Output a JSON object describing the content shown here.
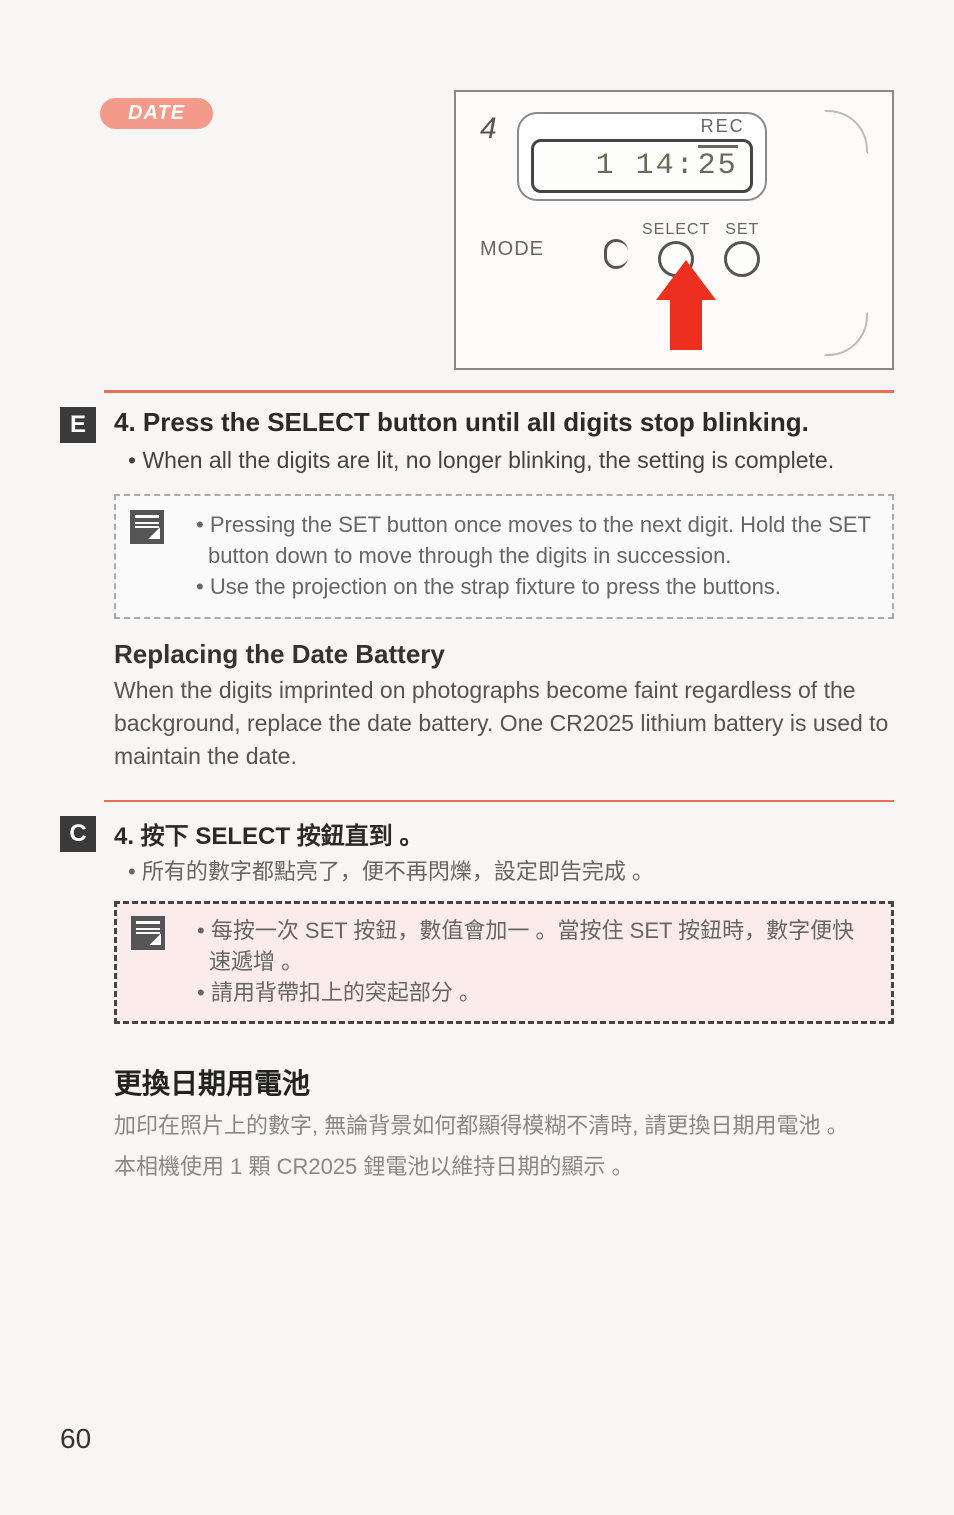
{
  "header": {
    "date_badge": "DATE"
  },
  "lcd": {
    "step_number": "4",
    "rec_label": "REC",
    "time_prefix": "1 14:",
    "time_blinking": "25",
    "mode_label": "MODE",
    "select_label": "SELECT",
    "set_label": "SET"
  },
  "english": {
    "lang_code": "E",
    "step_title": "4. Press the SELECT button until all digits stop blinking.",
    "step_bullet": "• When all the digits are lit, no longer blinking, the setting is complete.",
    "note1": "• Pressing the SET button once moves to the next digit. Hold the SET button down to move through the digits in succession.",
    "note2": "• Use the projection on the strap fixture to press the buttons.",
    "section2_title": "Replacing the Date Battery",
    "section2_body": "When the digits imprinted on photographs become faint regardless of the background, replace the date battery. One CR2025 lithium battery is used to maintain the date."
  },
  "chinese": {
    "lang_code": "C",
    "step_title": "4. 按下 SELECT 按鈕直到 。",
    "step_bullet": "• 所有的數字都點亮了，便不再閃爍，設定即告完成 。",
    "note1": "• 每按一次 SET 按鈕，數值會加一 。當按住 SET 按鈕時，數字便快速遞增 。",
    "note2": "• 請用背帶扣上的突起部分 。",
    "section2_title": "更換日期用電池",
    "section2_body1": "加印在照片上的數字, 無論背景如何都顯得模糊不清時, 請更換日期用電池 。",
    "section2_body2": "本相機使用 1 顆 CR2025 鋰電池以維持日期的顯示 。"
  },
  "page_number": "60",
  "colors": {
    "accent": "#e96f59",
    "arrow": "#ec2f1e",
    "badge_bg": "#f49a8b",
    "note_c_bg": "#fbeceb"
  }
}
